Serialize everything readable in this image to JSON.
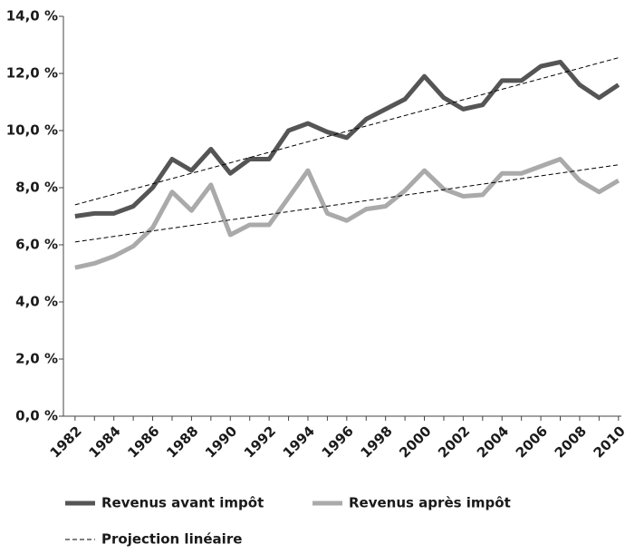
{
  "chart_data": {
    "type": "line",
    "x": [
      1982,
      1983,
      1984,
      1985,
      1986,
      1987,
      1988,
      1989,
      1990,
      1991,
      1992,
      1993,
      1994,
      1995,
      1996,
      1997,
      1998,
      1999,
      2000,
      2001,
      2002,
      2003,
      2004,
      2005,
      2006,
      2007,
      2008,
      2009,
      2010
    ],
    "series": [
      {
        "name": "Revenus avant impôt",
        "color": "#555555",
        "values": [
          7.0,
          7.1,
          7.1,
          7.35,
          8.0,
          9.0,
          8.6,
          9.35,
          8.5,
          9.0,
          9.0,
          10.0,
          10.25,
          9.95,
          9.75,
          10.4,
          10.75,
          11.1,
          11.9,
          11.15,
          10.75,
          10.9,
          11.75,
          11.75,
          12.25,
          12.4,
          11.6,
          11.15,
          11.6
        ]
      },
      {
        "name": "Revenus après impôt",
        "color": "#aaaaaa",
        "values": [
          5.2,
          5.35,
          5.6,
          5.95,
          6.6,
          7.85,
          7.2,
          8.1,
          6.35,
          6.7,
          6.7,
          7.65,
          8.6,
          7.1,
          6.85,
          7.25,
          7.35,
          7.9,
          8.6,
          7.95,
          7.7,
          7.75,
          8.5,
          8.5,
          8.75,
          9.0,
          8.25,
          7.85,
          8.25
        ]
      }
    ],
    "trend": {
      "name": "Projection linéaire",
      "color": "#000000",
      "x": [
        1982,
        2010
      ],
      "lines": [
        [
          7.4,
          12.55
        ],
        [
          6.1,
          8.8
        ]
      ]
    },
    "xlim": [
      1981.4,
      2010.15
    ],
    "xticks": [
      1982,
      1984,
      1986,
      1988,
      1990,
      1992,
      1994,
      1996,
      1998,
      2000,
      2002,
      2004,
      2006,
      2008,
      2010
    ],
    "ylim": [
      0,
      14
    ],
    "yticks": [
      {
        "value": 0,
        "label": "0,0 %"
      },
      {
        "value": 2,
        "label": "2,0 %"
      },
      {
        "value": 4,
        "label": "4,0 %"
      },
      {
        "value": 6,
        "label": "6,0 %"
      },
      {
        "value": 8,
        "label": "8,0 %"
      },
      {
        "value": 10,
        "label": "10,0 %"
      },
      {
        "value": 12,
        "label": "12,0 %"
      },
      {
        "value": 14,
        "label": "14,0 %"
      }
    ]
  }
}
